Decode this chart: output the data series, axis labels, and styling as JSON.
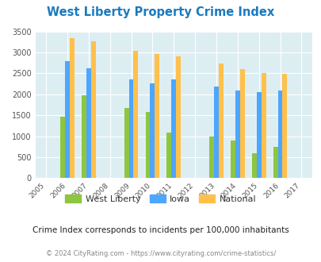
{
  "title": "West Liberty Property Crime Index",
  "years": [
    2005,
    2006,
    2007,
    2008,
    2009,
    2010,
    2011,
    2012,
    2013,
    2014,
    2015,
    2016,
    2017
  ],
  "bar_years": [
    2006,
    2007,
    2009,
    2010,
    2011,
    2013,
    2014,
    2015,
    2016
  ],
  "west_liberty": [
    1470,
    1970,
    1680,
    1580,
    1090,
    990,
    890,
    590,
    740
  ],
  "iowa": [
    2790,
    2620,
    2350,
    2260,
    2360,
    2180,
    2090,
    2050,
    2090
  ],
  "national": [
    3340,
    3260,
    3040,
    2960,
    2910,
    2730,
    2600,
    2500,
    2480
  ],
  "ylim": [
    0,
    3500
  ],
  "yticks": [
    0,
    500,
    1000,
    1500,
    2000,
    2500,
    3000,
    3500
  ],
  "color_west_liberty": "#8dc63f",
  "color_iowa": "#4da6ff",
  "color_national": "#ffc04c",
  "bg_color": "#ddeef3",
  "title_color": "#1a7abf",
  "subtitle": "Crime Index corresponds to incidents per 100,000 inhabitants",
  "footnote": "© 2024 CityRating.com - https://www.cityrating.com/crime-statistics/",
  "bar_width": 0.22
}
